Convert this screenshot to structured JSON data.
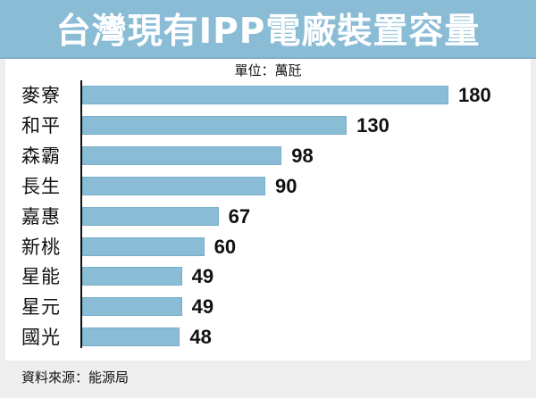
{
  "title": "台灣現有IPP電廠裝置容量",
  "unit": "單位：萬瓩",
  "source": "資料來源：能源局",
  "colors": {
    "bar": "#8abcd6",
    "title_bar": "#8abcd6",
    "background": "#eeeeee"
  },
  "chart_data": {
    "type": "bar",
    "orientation": "horizontal",
    "title": "台灣現有IPP電廠裝置容量",
    "subtitle": "單位：萬瓩",
    "categories": [
      "麥寮",
      "和平",
      "森霸",
      "長生",
      "嘉惠",
      "新桃",
      "星能",
      "星元",
      "國光"
    ],
    "values": [
      180,
      130,
      98,
      90,
      67,
      60,
      49,
      49,
      48
    ],
    "xlabel": "",
    "ylabel": "",
    "unit": "萬瓩",
    "xlim": [
      0,
      180
    ],
    "grid": false,
    "legend": "none",
    "data_labels": true,
    "source": "資料來源：能源局"
  },
  "rows": [
    {
      "label": "麥寮",
      "value": "180"
    },
    {
      "label": "和平",
      "value": "130"
    },
    {
      "label": "森霸",
      "value": "98"
    },
    {
      "label": "長生",
      "value": "90"
    },
    {
      "label": "嘉惠",
      "value": "67"
    },
    {
      "label": "新桃",
      "value": "60"
    },
    {
      "label": "星能",
      "value": "49"
    },
    {
      "label": "星元",
      "value": "49"
    },
    {
      "label": "國光",
      "value": "48"
    }
  ]
}
